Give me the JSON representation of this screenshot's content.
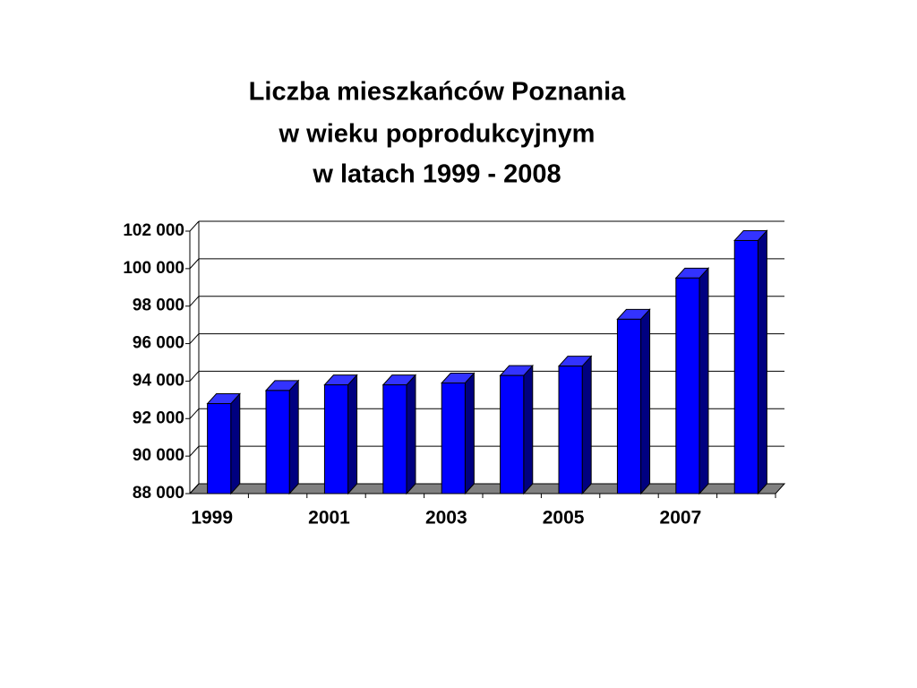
{
  "chart_data": {
    "type": "bar3d",
    "title": [
      "Liczba mieszkańców Poznania",
      "w wieku poprodukcyjnym",
      "w latach 1999 - 2008"
    ],
    "categories": [
      "1999",
      null,
      "2001",
      null,
      "2003",
      null,
      "2005",
      null,
      "2007",
      null
    ],
    "values": [
      92800,
      93500,
      93800,
      93800,
      93900,
      94300,
      94800,
      97300,
      99500,
      101500
    ],
    "color": "#0000ff",
    "ylim": [
      88000,
      102000
    ],
    "yticks": [
      {
        "value": 88000,
        "label": "88 000"
      },
      {
        "value": 90000,
        "label": "90 000"
      },
      {
        "value": 92000,
        "label": "92 000"
      },
      {
        "value": 94000,
        "label": "94 000"
      },
      {
        "value": 96000,
        "label": "96 000"
      },
      {
        "value": 98000,
        "label": "98 000"
      },
      {
        "value": 100000,
        "label": "100 000"
      },
      {
        "value": 102000,
        "label": "102 000"
      }
    ],
    "grid": true
  }
}
